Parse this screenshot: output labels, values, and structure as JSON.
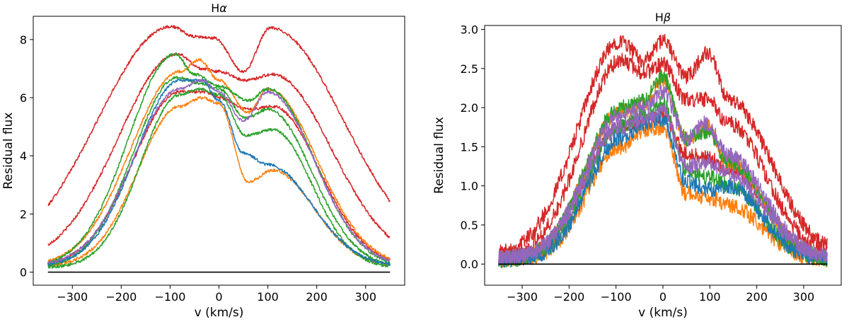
{
  "chart_data": [
    {
      "type": "line",
      "title": "Hα",
      "title_base": "H",
      "title_greek": "α",
      "xlabel": "v (km/s)",
      "ylabel": "Residual flux",
      "xlim": [
        -380,
        380
      ],
      "ylim": [
        -0.45,
        8.8
      ],
      "xticks": [
        -300,
        -200,
        -100,
        0,
        100,
        200,
        300
      ],
      "xtick_labels": [
        "−300",
        "−200",
        "−100",
        "0",
        "100",
        "200",
        "300"
      ],
      "yticks": [
        0,
        2,
        4,
        6,
        8
      ],
      "ytick_labels": [
        "0",
        "2",
        "4",
        "6",
        "8"
      ],
      "baseline": {
        "x": [
          -350,
          350
        ],
        "y": 0,
        "color": "#000000"
      },
      "noise": 0.05,
      "series": [
        {
          "name": "red-1",
          "color": "#d62728",
          "edge": 0.3,
          "wing": 150,
          "peaks": [
            [
              -98,
              8.45
            ],
            [
              -50,
              8.1
            ],
            [
              -10,
              8.05
            ],
            [
              50,
              6.9
            ],
            [
              105,
              8.4
            ]
          ]
        },
        {
          "name": "red-2",
          "color": "#d62728",
          "edge": 0.3,
          "wing": 120,
          "peaks": [
            [
              -85,
              7.5
            ],
            [
              -35,
              7.0
            ],
            [
              0,
              6.9
            ],
            [
              55,
              6.6
            ],
            [
              110,
              6.8
            ]
          ]
        },
        {
          "name": "red-3",
          "color": "#d62728",
          "edge": 0.2,
          "wing": 95,
          "peaks": [
            [
              -80,
              6.2
            ],
            [
              -30,
              6.2
            ],
            [
              0,
              6.0
            ],
            [
              60,
              5.6
            ],
            [
              110,
              5.7
            ]
          ]
        },
        {
          "name": "orange-1",
          "color": "#ff7f0e",
          "edge": 0.2,
          "wing": 100,
          "peaks": [
            [
              -80,
              6.9
            ],
            [
              -40,
              7.3
            ],
            [
              0,
              6.6
            ],
            [
              60,
              5.5
            ],
            [
              100,
              6.3
            ]
          ]
        },
        {
          "name": "orange-2",
          "color": "#ff7f0e",
          "edge": 0.2,
          "wing": 85,
          "peaks": [
            [
              -80,
              5.7
            ],
            [
              -35,
              6.0
            ],
            [
              0,
              5.8
            ],
            [
              60,
              3.1
            ],
            [
              110,
              3.5
            ]
          ]
        },
        {
          "name": "green-1",
          "color": "#2ca02c",
          "edge": 0.15,
          "wing": 95,
          "peaks": [
            [
              -90,
              7.5
            ],
            [
              -50,
              6.8
            ],
            [
              0,
              6.4
            ],
            [
              60,
              5.9
            ],
            [
              100,
              6.3
            ]
          ]
        },
        {
          "name": "green-2",
          "color": "#2ca02c",
          "edge": 0.15,
          "wing": 90,
          "peaks": [
            [
              -85,
              6.7
            ],
            [
              -40,
              6.5
            ],
            [
              0,
              6.3
            ],
            [
              55,
              5.3
            ],
            [
              100,
              5.6
            ]
          ]
        },
        {
          "name": "green-3",
          "color": "#2ca02c",
          "edge": 0.15,
          "wing": 80,
          "peaks": [
            [
              -80,
              6.1
            ],
            [
              -40,
              6.3
            ],
            [
              0,
              6.1
            ],
            [
              55,
              4.7
            ],
            [
              110,
              4.9
            ]
          ]
        },
        {
          "name": "blue-1",
          "color": "#1f77b4",
          "edge": 0.2,
          "wing": 90,
          "peaks": [
            [
              -80,
              6.6
            ],
            [
              -35,
              6.6
            ],
            [
              0,
              5.9
            ],
            [
              50,
              4.1
            ],
            [
              100,
              3.7
            ]
          ]
        },
        {
          "name": "purple-1",
          "color": "#9467bd",
          "edge": 0.2,
          "wing": 95,
          "peaks": [
            [
              -80,
              6.3
            ],
            [
              -35,
              6.6
            ],
            [
              0,
              6.2
            ],
            [
              50,
              5.2
            ],
            [
              100,
              6.2
            ]
          ]
        }
      ]
    },
    {
      "type": "line",
      "title": "Hβ",
      "title_base": "H",
      "title_greek": "β",
      "xlabel": "v (km/s)",
      "ylabel": "Residual flux",
      "xlim": [
        -380,
        380
      ],
      "ylim": [
        -0.27,
        3.05
      ],
      "xticks": [
        -300,
        -200,
        -100,
        0,
        100,
        200,
        300
      ],
      "xtick_labels": [
        "−300",
        "−200",
        "−100",
        "0",
        "100",
        "200",
        "300"
      ],
      "yticks": [
        0.0,
        0.5,
        1.0,
        1.5,
        2.0,
        2.5,
        3.0
      ],
      "ytick_labels": [
        "0.0",
        "0.5",
        "1.0",
        "1.5",
        "2.0",
        "2.5",
        "3.0"
      ],
      "baseline": {
        "x": [
          -350,
          350
        ],
        "y": 0,
        "color": "#000000"
      },
      "noise": 0.1,
      "series": [
        {
          "name": "red-1",
          "color": "#d62728",
          "edge": 0.1,
          "wing": 90,
          "peaks": [
            [
              -90,
              2.85
            ],
            [
              -40,
              2.6
            ],
            [
              0,
              2.85
            ],
            [
              50,
              2.4
            ],
            [
              95,
              2.7
            ],
            [
              140,
              2.1
            ]
          ]
        },
        {
          "name": "red-2",
          "color": "#d62728",
          "edge": 0.1,
          "wing": 80,
          "peaks": [
            [
              -90,
              2.6
            ],
            [
              -40,
              2.45
            ],
            [
              0,
              2.55
            ],
            [
              50,
              2.1
            ],
            [
              95,
              2.1
            ],
            [
              140,
              1.8
            ]
          ]
        },
        {
          "name": "red-3",
          "color": "#d62728",
          "edge": 0.08,
          "wing": 75,
          "peaks": [
            [
              -90,
              1.75
            ],
            [
              -40,
              1.8
            ],
            [
              0,
              1.9
            ],
            [
              50,
              1.4
            ],
            [
              100,
              1.35
            ],
            [
              140,
              1.2
            ]
          ]
        },
        {
          "name": "orange-1",
          "color": "#ff7f0e",
          "edge": 0.05,
          "wing": 75,
          "peaks": [
            [
              -90,
              1.95
            ],
            [
              -40,
              2.05
            ],
            [
              0,
              2.35
            ],
            [
              50,
              1.6
            ],
            [
              95,
              1.75
            ],
            [
              140,
              1.3
            ]
          ]
        },
        {
          "name": "orange-2",
          "color": "#ff7f0e",
          "edge": 0.05,
          "wing": 70,
          "peaks": [
            [
              -90,
              1.5
            ],
            [
              -40,
              1.7
            ],
            [
              0,
              1.75
            ],
            [
              50,
              0.9
            ],
            [
              100,
              0.85
            ],
            [
              140,
              0.75
            ]
          ]
        },
        {
          "name": "green-1",
          "color": "#2ca02c",
          "edge": 0.05,
          "wing": 75,
          "peaks": [
            [
              -90,
              2.0
            ],
            [
              -40,
              2.1
            ],
            [
              0,
              2.4
            ],
            [
              50,
              1.6
            ],
            [
              95,
              1.7
            ],
            [
              140,
              1.3
            ]
          ]
        },
        {
          "name": "green-2",
          "color": "#2ca02c",
          "edge": 0.05,
          "wing": 70,
          "peaks": [
            [
              -90,
              1.75
            ],
            [
              -40,
              1.9
            ],
            [
              0,
              2.05
            ],
            [
              50,
              1.2
            ],
            [
              100,
              1.1
            ],
            [
              140,
              1.0
            ]
          ]
        },
        {
          "name": "blue-1",
          "color": "#1f77b4",
          "edge": 0.05,
          "wing": 70,
          "peaks": [
            [
              -90,
              1.6
            ],
            [
              -40,
              1.8
            ],
            [
              0,
              1.85
            ],
            [
              50,
              1.05
            ],
            [
              100,
              0.95
            ],
            [
              140,
              1.0
            ]
          ]
        },
        {
          "name": "purple-1",
          "color": "#9467bd",
          "edge": 0.08,
          "wing": 75,
          "peaks": [
            [
              -90,
              1.9
            ],
            [
              -40,
              2.0
            ],
            [
              0,
              2.2
            ],
            [
              50,
              1.6
            ],
            [
              90,
              1.8
            ],
            [
              140,
              1.4
            ]
          ]
        },
        {
          "name": "purple-2",
          "color": "#9467bd",
          "edge": 0.08,
          "wing": 75,
          "peaks": [
            [
              -90,
              1.75
            ],
            [
              -40,
              1.85
            ],
            [
              0,
              1.95
            ],
            [
              50,
              1.25
            ],
            [
              100,
              1.3
            ],
            [
              140,
              1.15
            ]
          ]
        }
      ]
    }
  ]
}
